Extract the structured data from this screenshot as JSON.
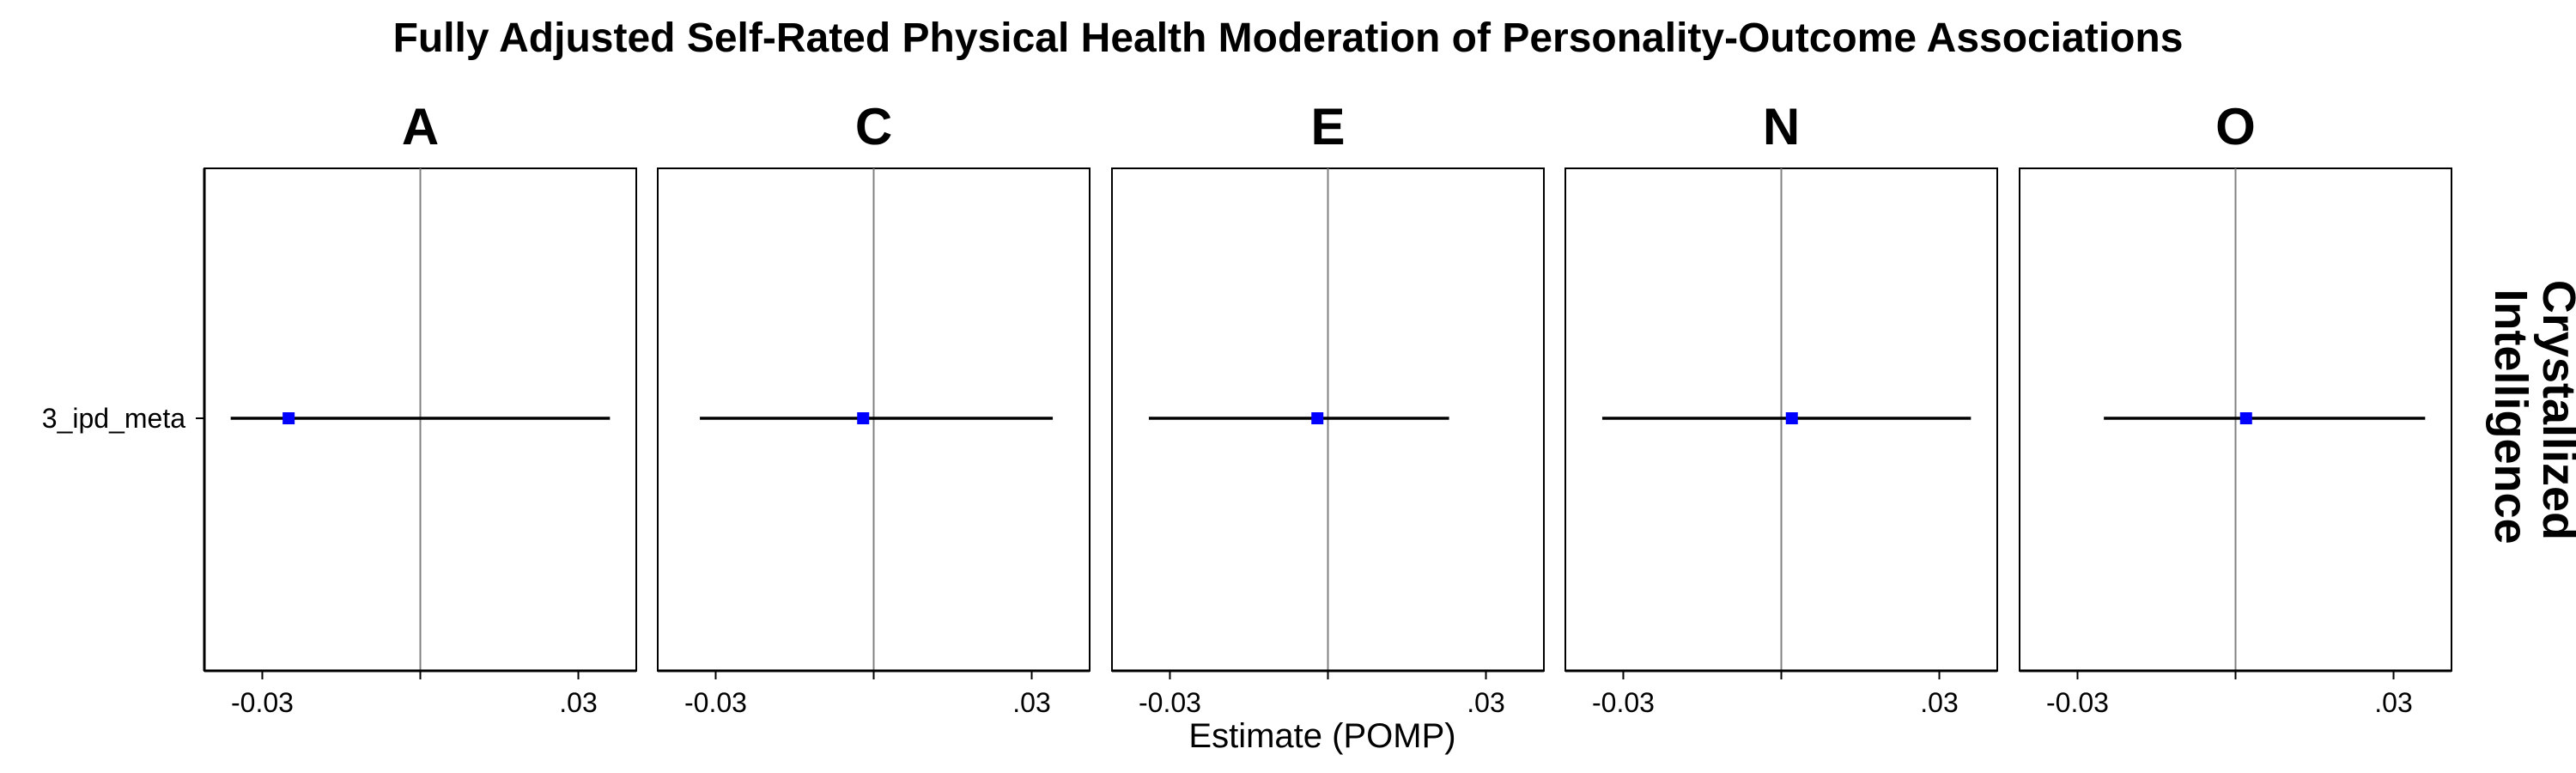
{
  "chart_data": {
    "type": "forest",
    "title": "Fully Adjusted Self-Rated Physical Health Moderation of Personality-Outcome Associations",
    "xlabel": "Estimate (POMP)",
    "row_strip_label": "Crystallized Intelligence",
    "row_strip_lines": [
      "Crystallized",
      "Intelligence"
    ],
    "y_categories": [
      "3_ipd_meta"
    ],
    "xlim": [
      -0.041,
      0.041
    ],
    "xticks": [
      -0.03,
      0,
      0.03
    ],
    "xtick_labels": [
      "-0.03",
      "",
      ".03"
    ],
    "reference_line": 0,
    "point_color": "#0000ff",
    "facets": [
      {
        "label": "A",
        "estimate": -0.025,
        "ci_low": -0.036,
        "ci_high": 0.036
      },
      {
        "label": "C",
        "estimate": -0.002,
        "ci_low": -0.033,
        "ci_high": 0.034
      },
      {
        "label": "E",
        "estimate": -0.002,
        "ci_low": -0.034,
        "ci_high": 0.023
      },
      {
        "label": "N",
        "estimate": 0.002,
        "ci_low": -0.034,
        "ci_high": 0.036
      },
      {
        "label": "O",
        "estimate": 0.002,
        "ci_low": -0.025,
        "ci_high": 0.036
      }
    ]
  }
}
